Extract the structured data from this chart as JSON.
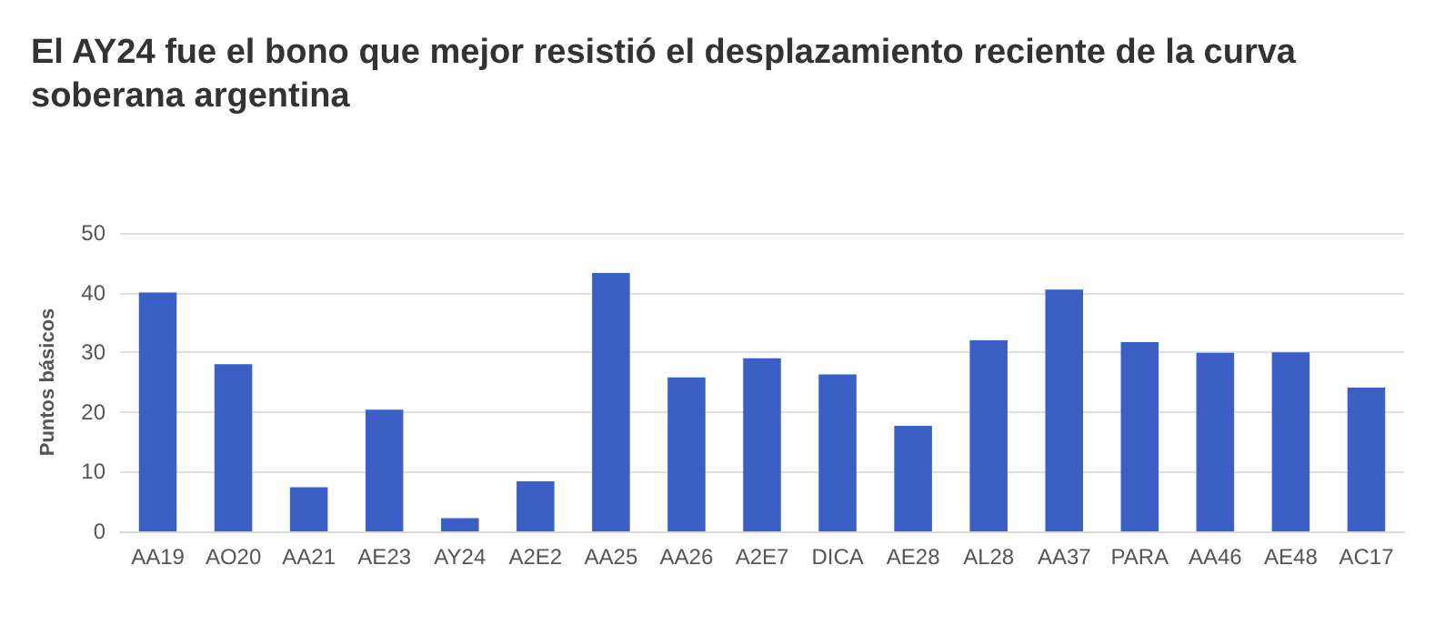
{
  "chart_data": {
    "type": "bar",
    "title": "El AY24 fue el bono que mejor resistió el desplazamiento reciente de la curva soberana argentina",
    "ylabel": "Puntos básicos",
    "categories": [
      "AA19",
      "AO20",
      "AA21",
      "AE23",
      "AY24",
      "A2E2",
      "AA25",
      "AA26",
      "A2E7",
      "DICA",
      "AE28",
      "AL28",
      "AA37",
      "PARA",
      "AA46",
      "AE48",
      "AC17"
    ],
    "values": [
      40,
      28,
      7.4,
      20.4,
      2.2,
      8.4,
      43.3,
      25.8,
      29,
      26.3,
      17.7,
      32,
      40.5,
      31.7,
      29.9,
      30,
      24.1
    ],
    "color": "#3b5fc4",
    "ylim": [
      0,
      50
    ],
    "yticks": [
      0,
      10,
      20,
      30,
      40,
      50
    ],
    "grid": "y"
  }
}
